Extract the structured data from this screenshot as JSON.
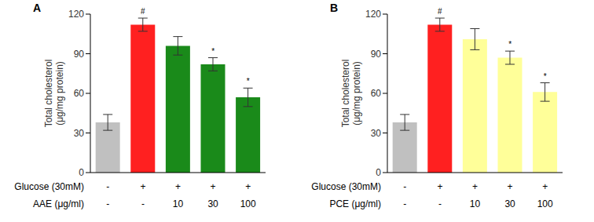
{
  "chart_data": [
    {
      "panel": "A",
      "type": "bar",
      "y_label": [
        "Total cholesterol",
        "(μg/mg protein)"
      ],
      "treatment_rows": [
        {
          "label": "Glucose (30mM)",
          "values": [
            "-",
            "+",
            "+",
            "+",
            "+"
          ]
        },
        {
          "label": "AAE (μg/ml)",
          "values": [
            "-",
            "-",
            "10",
            "30",
            "100"
          ]
        }
      ],
      "values": [
        38,
        112,
        96,
        82,
        57
      ],
      "errors": [
        6,
        5,
        7,
        5,
        7
      ],
      "colors": [
        "#c0c0c0",
        "#ff2020",
        "#1a8a1a",
        "#1a8a1a",
        "#1a8a1a"
      ],
      "significance": [
        null,
        "#",
        null,
        "*",
        "*"
      ],
      "ylim": [
        0,
        120
      ],
      "yticks": [
        0,
        30,
        60,
        90,
        120
      ]
    },
    {
      "panel": "B",
      "type": "bar",
      "y_label": [
        "Total cholesterol",
        "(μg/mg protein)"
      ],
      "treatment_rows": [
        {
          "label": "Glucose (30mM)",
          "values": [
            "-",
            "+",
            "+",
            "+",
            "+"
          ]
        },
        {
          "label": "PCE (μg/ml)",
          "values": [
            "-",
            "-",
            "10",
            "30",
            "100"
          ]
        }
      ],
      "values": [
        38,
        112,
        101,
        87,
        61
      ],
      "errors": [
        6,
        5,
        8,
        5,
        7
      ],
      "colors": [
        "#c0c0c0",
        "#ff2020",
        "#ffff99",
        "#ffff99",
        "#ffff99"
      ],
      "significance": [
        null,
        "#",
        null,
        "*",
        "*"
      ],
      "ylim": [
        0,
        120
      ],
      "yticks": [
        0,
        30,
        60,
        90,
        120
      ]
    }
  ]
}
